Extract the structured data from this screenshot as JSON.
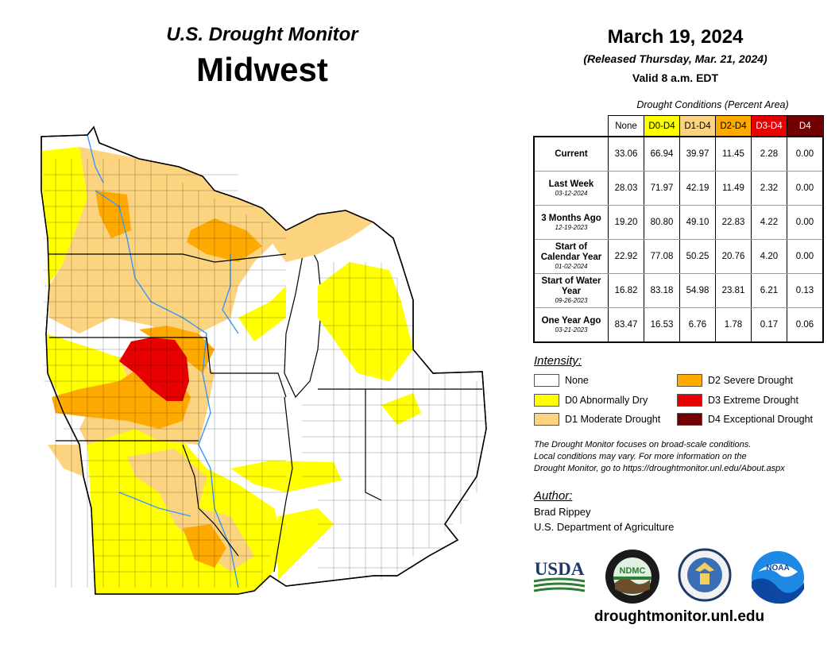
{
  "header": {
    "title_top": "U.S. Drought Monitor",
    "region": "Midwest",
    "date": "March 19, 2024",
    "released": "(Released Thursday, Mar. 21, 2024)",
    "valid": "Valid 8 a.m. EDT"
  },
  "conditions": {
    "caption": "Drought Conditions (Percent Area)",
    "columns": [
      {
        "label": "None",
        "color": "#ffffff",
        "text_color": "#000000"
      },
      {
        "label": "D0-D4",
        "color": "#ffff00",
        "text_color": "#000000"
      },
      {
        "label": "D1-D4",
        "color": "#fcd37f",
        "text_color": "#000000"
      },
      {
        "label": "D2-D4",
        "color": "#ffaa00",
        "text_color": "#000000"
      },
      {
        "label": "D3-D4",
        "color": "#e60000",
        "text_color": "#ffffff"
      },
      {
        "label": "D4",
        "color": "#730000",
        "text_color": "#ffffff"
      }
    ],
    "rows": [
      {
        "label": "Current",
        "date": "",
        "values": [
          "33.06",
          "66.94",
          "39.97",
          "11.45",
          "2.28",
          "0.00"
        ]
      },
      {
        "label": "Last Week",
        "date": "03-12-2024",
        "values": [
          "28.03",
          "71.97",
          "42.19",
          "11.49",
          "2.32",
          "0.00"
        ]
      },
      {
        "label": "3 Months Ago",
        "date": "12-19-2023",
        "values": [
          "19.20",
          "80.80",
          "49.10",
          "22.83",
          "4.22",
          "0.00"
        ]
      },
      {
        "label": "Start of Calendar Year",
        "date": "01-02-2024",
        "values": [
          "22.92",
          "77.08",
          "50.25",
          "20.76",
          "4.20",
          "0.00"
        ]
      },
      {
        "label": "Start of Water Year",
        "date": "09-26-2023",
        "values": [
          "16.82",
          "83.18",
          "54.98",
          "23.81",
          "6.21",
          "0.13"
        ]
      },
      {
        "label": "One Year Ago",
        "date": "03-21-2023",
        "values": [
          "83.47",
          "16.53",
          "6.76",
          "1.78",
          "0.17",
          "0.06"
        ]
      }
    ]
  },
  "legend": {
    "title": "Intensity:",
    "items": [
      {
        "label": "None",
        "color": "#ffffff"
      },
      {
        "label": "D0 Abnormally Dry",
        "color": "#ffff00"
      },
      {
        "label": "D1 Moderate Drought",
        "color": "#fcd37f"
      },
      {
        "label": "D2 Severe Drought",
        "color": "#ffaa00"
      },
      {
        "label": "D3 Extreme Drought",
        "color": "#e60000"
      },
      {
        "label": "D4 Exceptional Drought",
        "color": "#730000"
      }
    ]
  },
  "note": {
    "line1": "The Drought Monitor focuses on broad-scale conditions.",
    "line2": "Local conditions may vary. For more information on the",
    "line3": "Drought Monitor, go to https://droughtmonitor.unl.edu/About.aspx"
  },
  "author": {
    "title": "Author:",
    "name": "Brad Rippey",
    "org": "U.S. Department of Agriculture"
  },
  "logos": {
    "usda": "USDA",
    "ndmc": "NDMC",
    "noaa": "NOAA"
  },
  "website": "droughtmonitor.unl.edu",
  "map": {
    "water_color": "#ffffff",
    "river_color": "#3399ff",
    "boundary_color": "#000000"
  }
}
